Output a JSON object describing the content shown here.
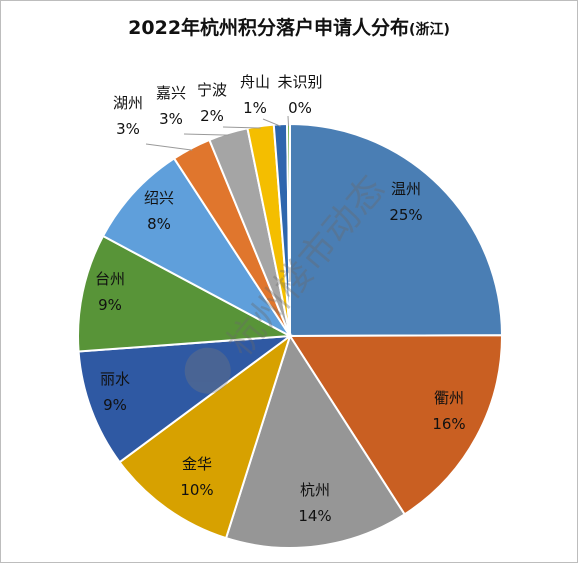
{
  "chart_data": {
    "type": "pie",
    "title": "2022年杭州积分落户申请人分布",
    "title_suffix": "(浙江)",
    "categories": [
      "温州",
      "衢州",
      "杭州",
      "金华",
      "丽水",
      "台州",
      "绍兴",
      "湖州",
      "嘉兴",
      "宁波",
      "舟山",
      "未识别"
    ],
    "values": [
      25,
      16,
      14,
      10,
      9,
      9,
      8,
      3,
      3,
      2,
      1,
      0
    ],
    "value_labels": [
      "25%",
      "16%",
      "14%",
      "10%",
      "9%",
      "9%",
      "8%",
      "3%",
      "3%",
      "2%",
      "1%",
      "0%"
    ],
    "colors": [
      "#4a7eb4",
      "#c95f22",
      "#969696",
      "#d7a100",
      "#2f59a3",
      "#589438",
      "#5f9fdb",
      "#e0762d",
      "#a5a5a5",
      "#f4be00",
      "#2e66ad",
      "#6fae3f"
    ],
    "start_angle_deg": 0,
    "direction": "clockwise"
  },
  "watermark": {
    "text": "杭州楼市动态"
  }
}
